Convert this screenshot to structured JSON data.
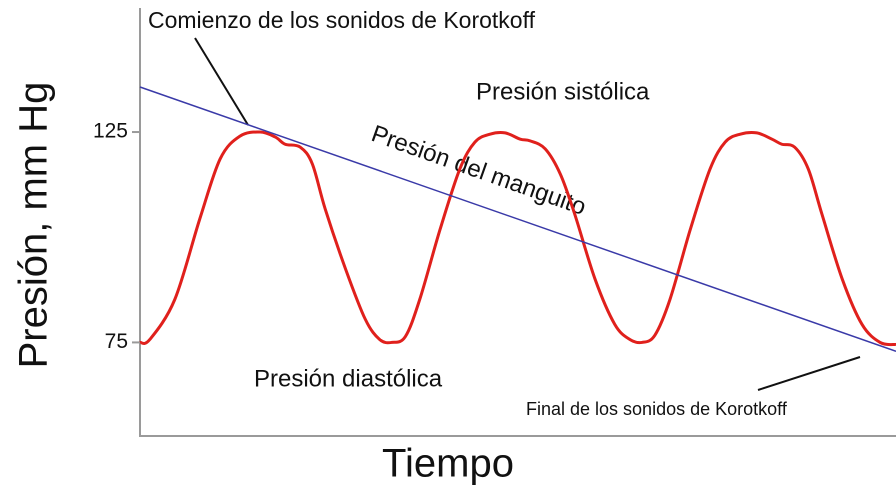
{
  "chart_data": {
    "type": "line",
    "x_label": "Tiempo",
    "y_label": "Presión, mm Hg",
    "xlim": [
      0,
      100
    ],
    "ylim": [
      53,
      154
    ],
    "yticks": [
      75,
      125
    ],
    "annotations": [
      "Comienzo de los sonidos de Korotkoff",
      "Presión sistólica",
      "Presión del manguito",
      "Presión diastólica",
      "Final de los sonidos de Korotkoff"
    ],
    "series": [
      {
        "color": "#e0201c",
        "x": [
          0,
          1.3,
          4.6,
          7.9,
          10.6,
          13.2,
          15.9,
          17.9,
          19.2,
          21.2,
          22.8,
          24.5,
          27.2,
          29.8,
          31.7,
          33.3,
          35.1,
          37.0,
          39.7,
          42.3,
          44.3,
          46.3,
          48.3,
          50.3,
          51.6,
          53.6,
          55.6,
          57.5,
          60.2,
          62.8,
          64.8,
          66.4,
          68.1,
          70.1,
          72.8,
          75.4,
          77.4,
          79.4,
          81.6,
          83.6,
          84.9,
          86.6,
          88.4,
          90.2,
          92.9,
          95.5,
          97.9,
          100
        ],
        "values": [
          75,
          75.7,
          85.2,
          104.3,
          118.6,
          124.0,
          125.0,
          123.8,
          122.1,
          121.4,
          117.4,
          106.7,
          92.4,
          80.5,
          75.7,
          75,
          76.4,
          85.2,
          101.9,
          116.2,
          122.6,
          124.5,
          124.8,
          123.3,
          122.9,
          121.0,
          115.0,
          105.5,
          90.0,
          79.3,
          75.7,
          75,
          76.7,
          85.2,
          101.9,
          116.2,
          122.6,
          124.5,
          124.8,
          123.3,
          122.1,
          121.4,
          116.2,
          105.5,
          90.0,
          79.3,
          75,
          74.5
        ]
      },
      {
        "color": "#3a3aa8",
        "x": [
          0,
          100
        ],
        "values": [
          135.7,
          72.9
        ]
      }
    ]
  }
}
